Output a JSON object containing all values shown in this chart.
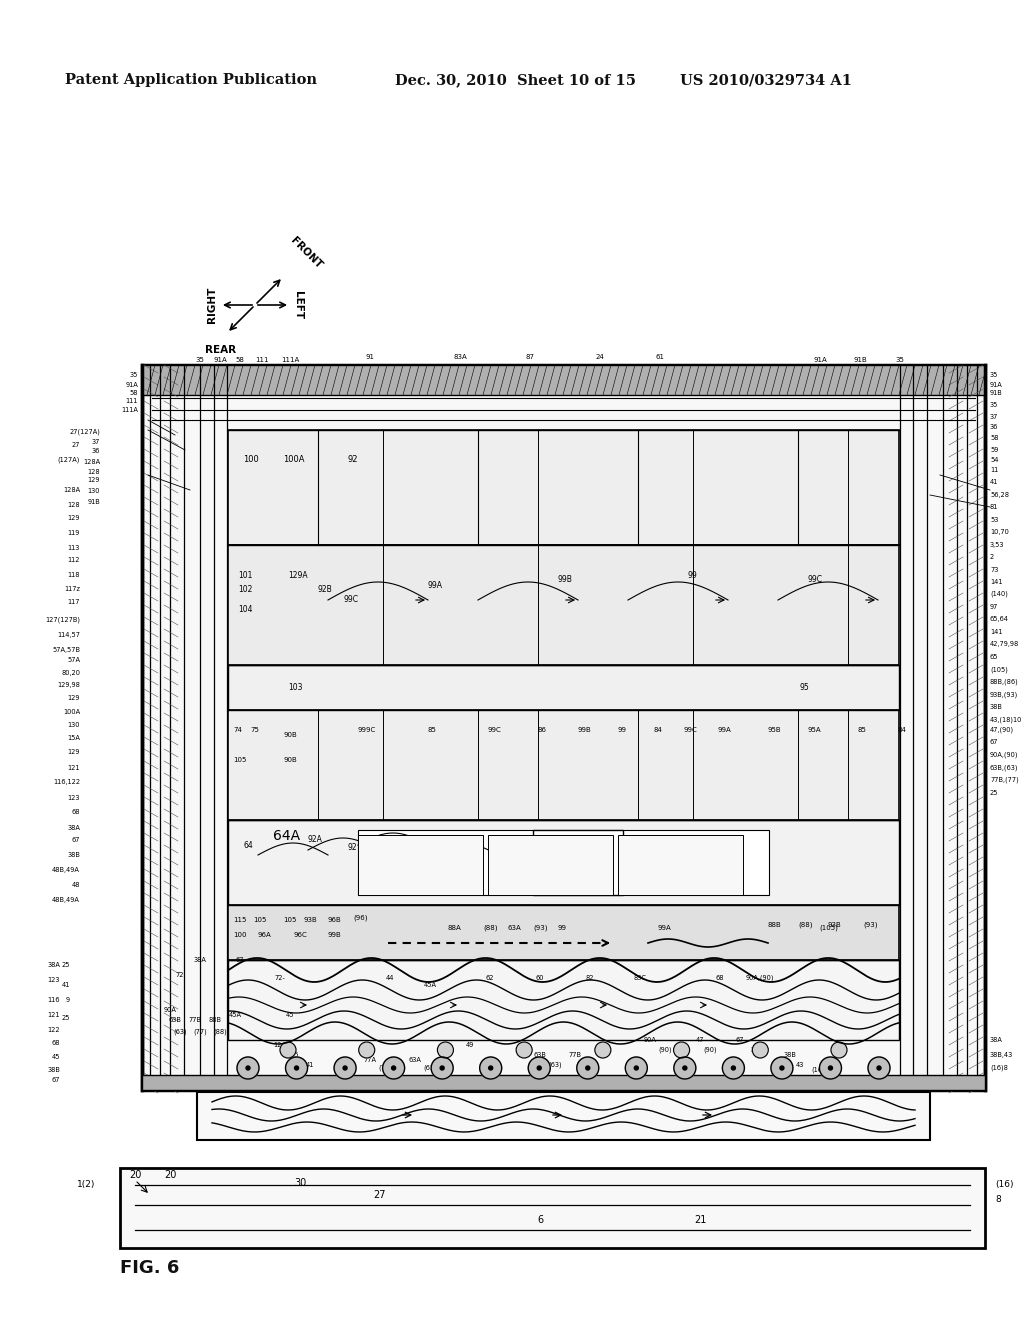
{
  "background_color": "#ffffff",
  "header_left": "Patent Application Publication",
  "header_center": "Dec. 30, 2010  Sheet 10 of 15",
  "header_right": "US 2010/0329734 A1",
  "figure_label": "FIG. 6"
}
